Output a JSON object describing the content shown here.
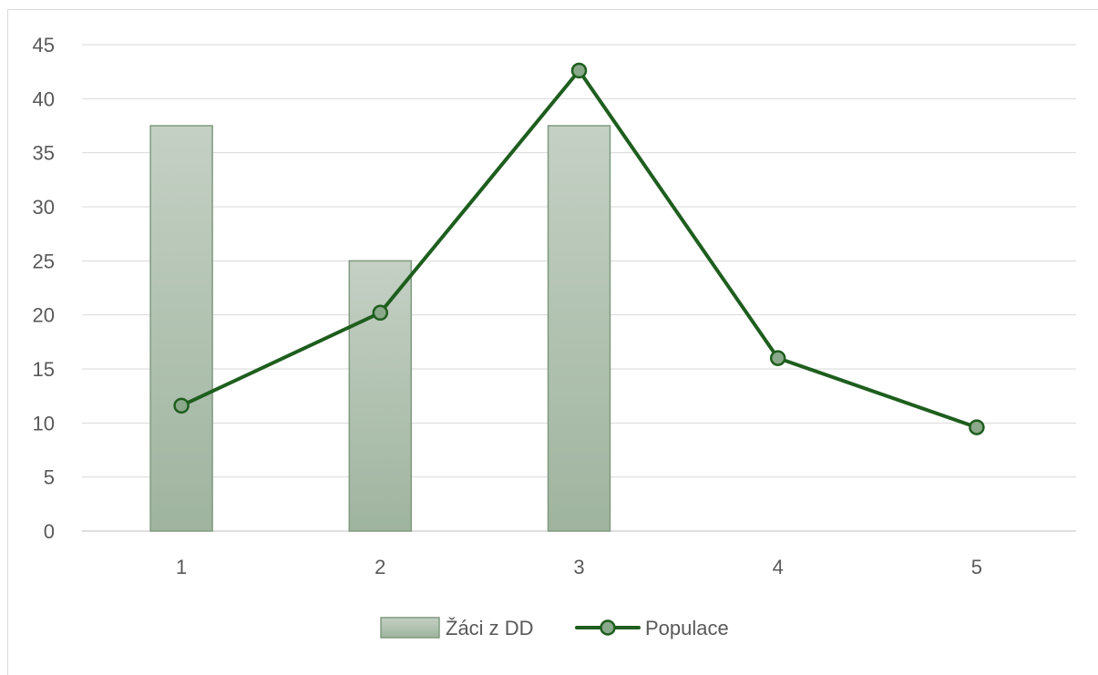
{
  "chart_data": {
    "type": "bar",
    "title": "",
    "xlabel": "",
    "ylabel": "",
    "categories": [
      "1",
      "2",
      "3",
      "4",
      "5"
    ],
    "ylim": [
      0,
      45
    ],
    "y_ticks": [
      "0",
      "5",
      "10",
      "15",
      "20",
      "25",
      "30",
      "35",
      "40",
      "45"
    ],
    "grid": true,
    "legend_position": "bottom",
    "series": [
      {
        "name": "Žáci z DD",
        "type": "bar",
        "values": [
          37.5,
          25,
          37.5,
          null,
          null
        ],
        "color": "#a9bca9"
      },
      {
        "name": "Populace",
        "type": "line",
        "values": [
          11.6,
          20.2,
          42.6,
          16.0,
          9.6
        ],
        "color": "#1e5e1e",
        "marker_fill": "#8aa88a"
      }
    ]
  }
}
